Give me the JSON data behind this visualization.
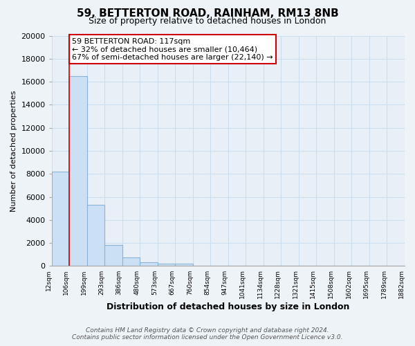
{
  "title": "59, BETTERTON ROAD, RAINHAM, RM13 8NB",
  "subtitle": "Size of property relative to detached houses in London",
  "xlabel": "Distribution of detached houses by size in London",
  "ylabel": "Number of detached properties",
  "bar_values": [
    8200,
    16500,
    5300,
    1800,
    750,
    300,
    200,
    200,
    0,
    0,
    0,
    0,
    0,
    0,
    0,
    0,
    0,
    0,
    0,
    0
  ],
  "bin_labels": [
    "12sqm",
    "106sqm",
    "199sqm",
    "293sqm",
    "386sqm",
    "480sqm",
    "573sqm",
    "667sqm",
    "760sqm",
    "854sqm",
    "947sqm",
    "1041sqm",
    "1134sqm",
    "1228sqm",
    "1321sqm",
    "1415sqm",
    "1508sqm",
    "1602sqm",
    "1695sqm",
    "1789sqm",
    "1882sqm"
  ],
  "bar_color": "#cce0f5",
  "bar_edge_color": "#8ab4d4",
  "vline_color": "#cc0000",
  "vline_x_index": 1,
  "ylim": [
    0,
    20000
  ],
  "yticks": [
    0,
    2000,
    4000,
    6000,
    8000,
    10000,
    12000,
    14000,
    16000,
    18000,
    20000
  ],
  "annotation_title": "59 BETTERTON ROAD: 117sqm",
  "annotation_line1": "← 32% of detached houses are smaller (10,464)",
  "annotation_line2": "67% of semi-detached houses are larger (22,140) →",
  "annotation_box_color": "#ffffff",
  "annotation_box_edge": "#cc0000",
  "footer1": "Contains HM Land Registry data © Crown copyright and database right 2024.",
  "footer2": "Contains public sector information licensed under the Open Government Licence v3.0.",
  "grid_color": "#ccddee",
  "background_color": "#eef3f8",
  "plot_bg_color": "#e8eff7"
}
